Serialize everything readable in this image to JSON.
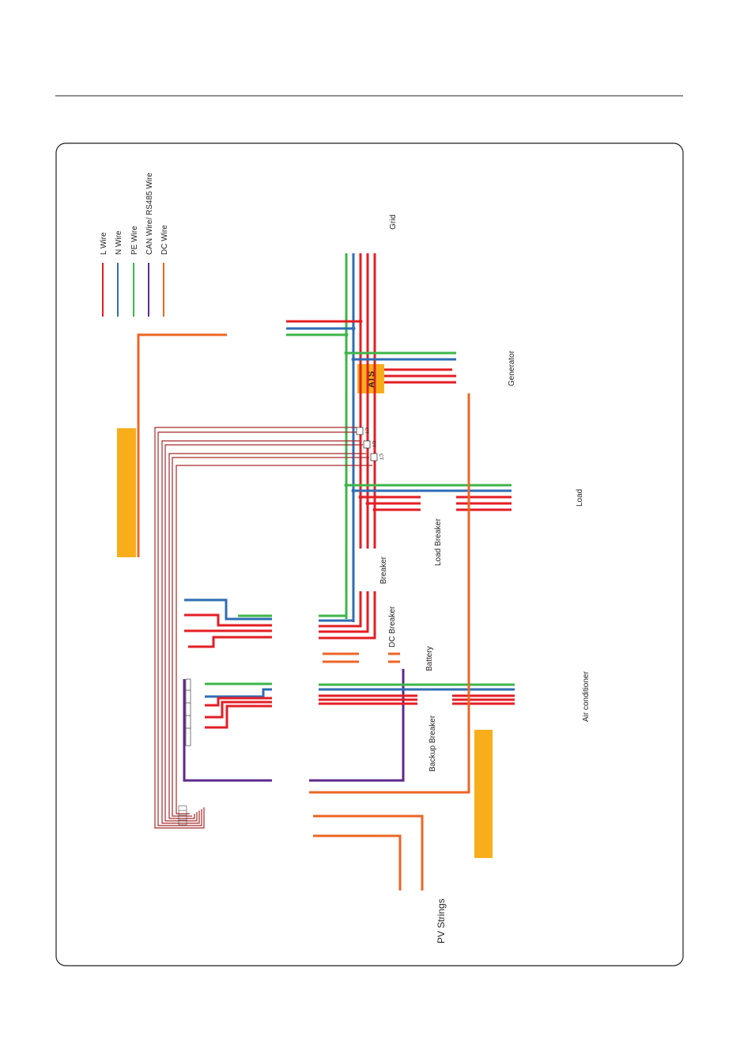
{
  "legend": {
    "items": [
      {
        "label": "L Wire",
        "color": "#e31e24"
      },
      {
        "label": "N Wire",
        "color": "#2e6db4"
      },
      {
        "label": "PE Wire",
        "color": "#3db54a"
      },
      {
        "label": "CAN Wire/ RS485 Wire",
        "color": "#5b2a8c"
      },
      {
        "label": "DC Wire",
        "color": "#ec6625"
      }
    ]
  },
  "labels": {
    "grid": "Grid",
    "generator": "Generator",
    "ats": "ATS",
    "ct": "CT",
    "load": "Load",
    "load_breaker": "Load Breaker",
    "breaker": "Breaker",
    "dc_breaker": "DC Breaker",
    "battery": "Battery",
    "backup_breaker": "Backup Breaker",
    "air_conditioner": "Air conditioner",
    "pv_strings": "PV Strings"
  },
  "colors": {
    "l_wire": "#e31e24",
    "n_wire": "#2e6db4",
    "pe_wire": "#3db54a",
    "can_wire": "#5b2a8c",
    "dc_wire": "#ec6625",
    "ct_wire": "#a52a2a",
    "device_block": "#f8ae1a"
  }
}
